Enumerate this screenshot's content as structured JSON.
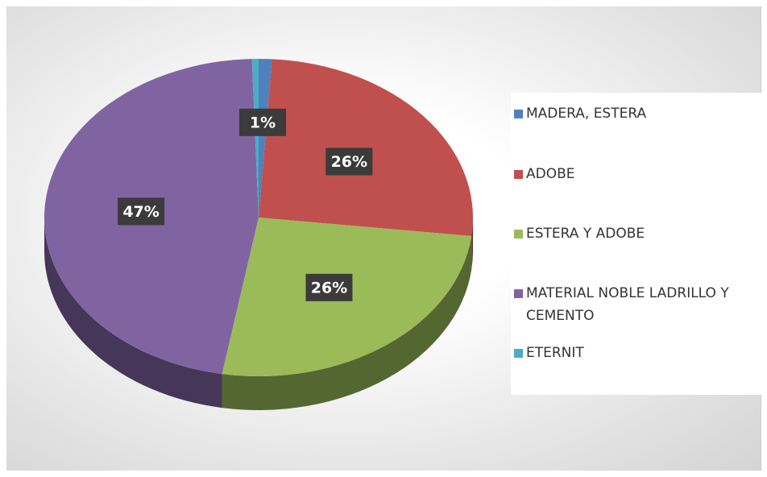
{
  "chart_data": {
    "type": "pie",
    "categories": [
      "MADERA, ESTERA",
      "ADOBE",
      "ESTERA Y ADOBE",
      "MATERIAL NOBLE LADRILLO Y CEMENTO",
      "ETERNIT"
    ],
    "values": [
      1,
      26,
      26,
      47,
      0.5
    ],
    "value_labels": [
      "1%",
      "26%",
      "26%",
      "47%",
      null
    ],
    "colors": [
      "#4f81bd",
      "#c0504d",
      "#9bbb59",
      "#8064a2",
      "#4bacc6"
    ],
    "legend": "right"
  }
}
